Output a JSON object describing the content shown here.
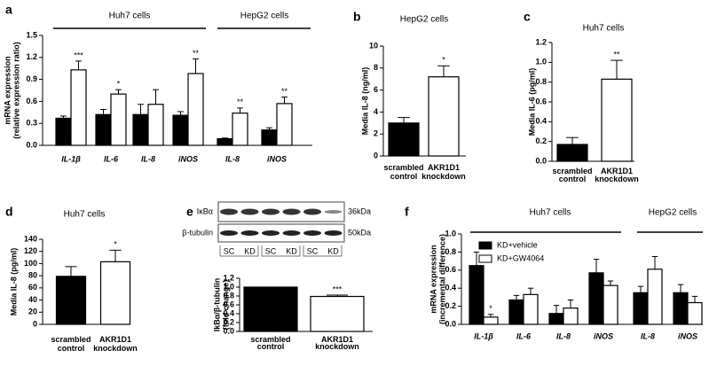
{
  "chart_data": [
    {
      "type": "bar",
      "panel": "a",
      "ylabel": [
        "mRNA expression",
        "(relative expression ratio)"
      ],
      "groups": [
        "Huh7 cells",
        "HepG2 cells"
      ],
      "categories": [
        "IL-1β",
        "IL-6",
        "IL-8",
        "iNOS",
        "IL-8",
        "iNOS"
      ],
      "series": [
        {
          "color": "#000000",
          "values": [
            0.37,
            0.42,
            0.42,
            0.41,
            0.09,
            0.21
          ],
          "errors": [
            0.03,
            0.07,
            0.14,
            0.05,
            0.01,
            0.03
          ],
          "annotations": [
            null,
            null,
            null,
            null,
            null,
            null
          ]
        },
        {
          "color": "#ffffff",
          "values": [
            1.03,
            0.7,
            0.56,
            0.98,
            0.44,
            0.57
          ],
          "errors": [
            0.12,
            0.06,
            0.2,
            0.2,
            0.07,
            0.09
          ],
          "annotations": [
            "***",
            "*",
            null,
            "**",
            "**",
            "**"
          ]
        }
      ],
      "ylim": [
        0,
        1.5
      ],
      "yticks": [
        {
          "value": 0,
          "label": "0.0"
        },
        0.3,
        0.6,
        0.9,
        1.2,
        1.5
      ]
    },
    {
      "type": "bar",
      "panel": "b",
      "title": "HepG2 cells",
      "ylabel": [
        "Media IL-8 (ng/ml)"
      ],
      "categories": [
        "scrambled control",
        "AKR1D1 knockdown"
      ],
      "series": [
        {
          "colors": [
            "#000000",
            "#ffffff"
          ],
          "values": [
            3.0,
            7.2
          ],
          "errors": [
            0.5,
            1.0
          ],
          "annotations": [
            null,
            "*"
          ]
        }
      ],
      "ylim": [
        0,
        10
      ],
      "yticks": [
        0,
        2,
        4,
        6,
        8,
        10
      ]
    },
    {
      "type": "bar",
      "panel": "c",
      "title": "Huh7 cells",
      "ylabel": [
        "Media IL-6 (pg/ml)"
      ],
      "categories": [
        "scrambled control",
        "AKR1D1 knockdown"
      ],
      "series": [
        {
          "colors": [
            "#000000",
            "#ffffff"
          ],
          "values": [
            0.17,
            0.83
          ],
          "errors": [
            0.07,
            0.19
          ],
          "annotations": [
            null,
            "**"
          ]
        }
      ],
      "ylim": [
        0,
        1.2
      ],
      "yticks": [
        {
          "value": 0,
          "label": "0.0"
        },
        0.2,
        0.4,
        0.6,
        0.8,
        {
          "value": 1,
          "label": "1.0"
        },
        1.2
      ]
    },
    {
      "type": "bar",
      "panel": "d",
      "title": "Huh7 cells",
      "ylabel": [
        "Media IL-8 (pg/ml)"
      ],
      "categories": [
        "scrambled control",
        "AKR1D1 knockdown"
      ],
      "series": [
        {
          "colors": [
            "#000000",
            "#ffffff"
          ],
          "values": [
            79,
            103
          ],
          "errors": [
            16,
            19
          ],
          "annotations": [
            null,
            "*"
          ]
        }
      ],
      "ylim": [
        0,
        140
      ],
      "yticks": [
        0,
        20,
        40,
        60,
        80,
        100,
        120,
        140
      ]
    },
    {
      "type": "bar",
      "panel": "e",
      "ylabel": [
        "IkBα/β-tubulin",
        "(fold change)"
      ],
      "blot": {
        "proteins": [
          "IκBα",
          "β-tubulin"
        ],
        "sizes": [
          "36kDa",
          "50kDa"
        ],
        "lanes": [
          "SC",
          "KD",
          "SC",
          "KD",
          "SC",
          "KD"
        ]
      },
      "categories": [
        "scrambled control",
        "AKR1D1 knockdown"
      ],
      "series": [
        {
          "colors": [
            "#000000",
            "#ffffff"
          ],
          "values": [
            1.0,
            0.79
          ],
          "errors": [
            0,
            0.03
          ],
          "annotations": [
            null,
            "***"
          ]
        }
      ],
      "ylim": [
        0,
        1.2
      ],
      "yticks": [
        {
          "value": 0,
          "label": "0.0"
        },
        0.2,
        0.4,
        0.6,
        0.8,
        {
          "value": 1,
          "label": "1.0"
        },
        1.2
      ]
    },
    {
      "type": "bar",
      "panel": "f",
      "ylabel": [
        "mRNA expression",
        "(incremental difference)"
      ],
      "groups": [
        "Huh7 cells",
        "HepG2 cells"
      ],
      "categories": [
        "IL-1β",
        "IL-6",
        "IL-8",
        "iNOS",
        "IL-8",
        "iNOS"
      ],
      "series": [
        {
          "name": "KD+vehicle",
          "color": "#000000",
          "values": [
            0.65,
            0.27,
            0.12,
            0.57,
            0.35,
            0.35
          ],
          "errors": [
            0.15,
            0.05,
            0.09,
            0.15,
            0.07,
            0.09
          ],
          "annotations": [
            null,
            null,
            null,
            null,
            null,
            null
          ]
        },
        {
          "name": "KD+GW4064",
          "color": "#ffffff",
          "values": [
            0.08,
            0.33,
            0.18,
            0.43,
            0.61,
            0.24
          ],
          "errors": [
            0.03,
            0.07,
            0.09,
            0.05,
            0.14,
            0.07
          ],
          "annotations": [
            "*",
            null,
            null,
            null,
            null,
            null
          ]
        }
      ],
      "ylim": [
        0,
        1.0
      ],
      "yticks": [
        {
          "value": 0,
          "label": "0.0"
        },
        0.2,
        0.4,
        0.6,
        0.8,
        {
          "value": 1,
          "label": "1.0"
        }
      ]
    }
  ]
}
